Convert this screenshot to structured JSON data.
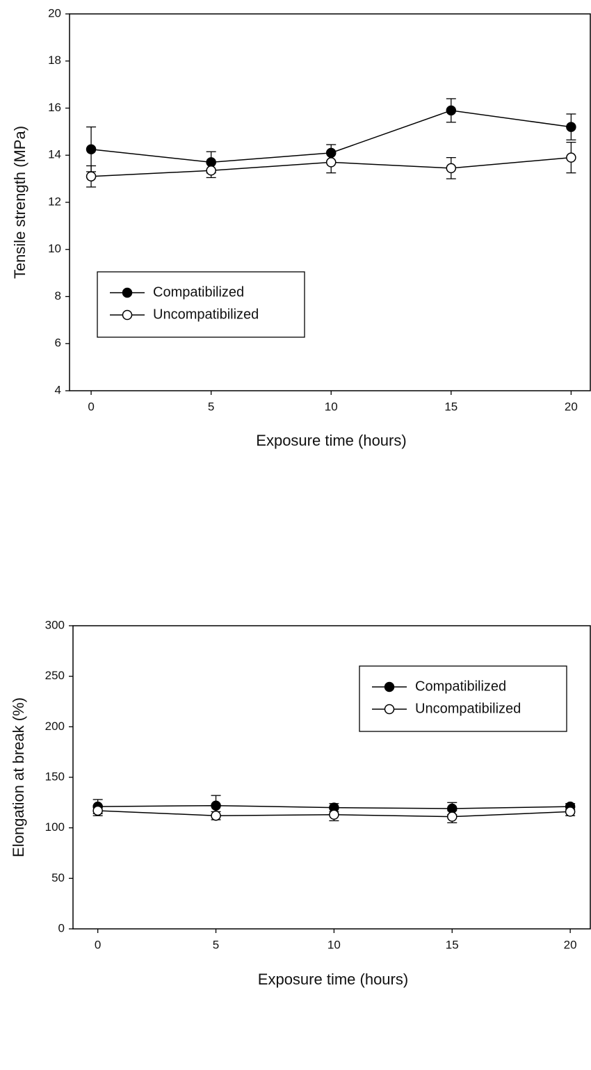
{
  "chart_data": [
    {
      "type": "line",
      "xlabel": "Exposure time (hours)",
      "ylabel": "Tensile strength (MPa)",
      "x": [
        0,
        5,
        10,
        15,
        20
      ],
      "xlim": [
        -0.9,
        20.8
      ],
      "xticks": [
        0,
        5,
        10,
        15,
        20
      ],
      "ylim": [
        4,
        20
      ],
      "yticks": [
        4,
        6,
        8,
        10,
        12,
        14,
        16,
        18,
        20
      ],
      "legend": "center left",
      "series": [
        {
          "name": "Compatibilized",
          "color": "#000000",
          "marker": "filled",
          "values": [
            14.25,
            13.7,
            14.1,
            15.9,
            15.2
          ],
          "errors": [
            0.95,
            0.45,
            0.35,
            0.5,
            0.55
          ]
        },
        {
          "name": "Uncompatibilized",
          "color": "#000000",
          "marker": "open",
          "values": [
            13.1,
            13.35,
            13.7,
            13.45,
            13.9
          ],
          "errors": [
            0.45,
            0.3,
            0.45,
            0.45,
            0.65
          ]
        }
      ]
    },
    {
      "type": "line",
      "xlabel": "Exposure time (hours)",
      "ylabel": "Elongation at break (%)",
      "x": [
        0,
        5,
        10,
        15,
        20
      ],
      "xlim": [
        -1.05,
        20.85
      ],
      "xticks": [
        0,
        5,
        10,
        15,
        20
      ],
      "ylim": [
        0,
        300
      ],
      "yticks": [
        0,
        50,
        100,
        150,
        200,
        250,
        300
      ],
      "legend": "upper right",
      "series": [
        {
          "name": "Compatibilized",
          "color": "#000000",
          "marker": "filled",
          "values": [
            121,
            122,
            120,
            119,
            121
          ],
          "errors": [
            7,
            10,
            4,
            6,
            3
          ]
        },
        {
          "name": "Uncompatibilized",
          "color": "#000000",
          "marker": "open",
          "values": [
            117,
            112,
            113,
            111,
            116
          ],
          "errors": [
            5,
            4,
            6,
            6,
            4
          ]
        }
      ]
    }
  ]
}
